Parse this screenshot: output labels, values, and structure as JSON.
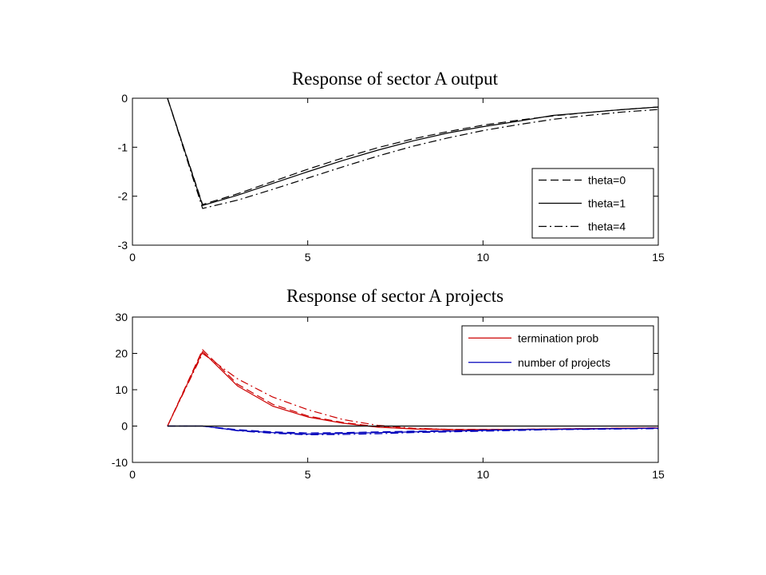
{
  "colors": {
    "background": "#ffffff",
    "axes": "#000000",
    "black_series": "#000000",
    "red_series": "#cc0000",
    "blue_series": "#0000bb"
  },
  "chart_data": [
    {
      "type": "line",
      "title": "Response of sector A output",
      "xlabel": "",
      "ylabel": "",
      "xlim": [
        0,
        15
      ],
      "ylim": [
        -3,
        0
      ],
      "xticks": [
        0,
        5,
        10,
        15
      ],
      "yticks": [
        -3,
        -2,
        -1,
        0
      ],
      "grid": false,
      "legend_position": "lower-right",
      "series": [
        {
          "name": "theta=0",
          "style": "dashed",
          "color": "#000000",
          "x": [
            1,
            2,
            3,
            4,
            5,
            6,
            7,
            8,
            9,
            10,
            11,
            12,
            13,
            14,
            15
          ],
          "y": [
            0,
            -2.17,
            -1.95,
            -1.7,
            -1.45,
            -1.22,
            -1.01,
            -0.83,
            -0.68,
            -0.55,
            -0.45,
            -0.36,
            -0.29,
            -0.23,
            -0.18
          ]
        },
        {
          "name": "theta=1",
          "style": "solid",
          "color": "#000000",
          "x": [
            1,
            2,
            3,
            4,
            5,
            6,
            7,
            8,
            9,
            10,
            11,
            12,
            13,
            14,
            15
          ],
          "y": [
            0,
            -2.19,
            -1.98,
            -1.74,
            -1.5,
            -1.27,
            -1.06,
            -0.87,
            -0.71,
            -0.58,
            -0.47,
            -0.35,
            -0.29,
            -0.23,
            -0.18
          ]
        },
        {
          "name": "theta=4",
          "style": "dashdot",
          "color": "#000000",
          "x": [
            1,
            2,
            3,
            4,
            5,
            6,
            7,
            8,
            9,
            10,
            11,
            12,
            13,
            14,
            15
          ],
          "y": [
            0,
            -2.25,
            -2.08,
            -1.86,
            -1.63,
            -1.4,
            -1.18,
            -0.98,
            -0.81,
            -0.66,
            -0.54,
            -0.43,
            -0.35,
            -0.28,
            -0.23
          ]
        }
      ]
    },
    {
      "type": "line",
      "title": "Response of sector A projects",
      "xlabel": "",
      "ylabel": "",
      "xlim": [
        0,
        15
      ],
      "ylim": [
        -10,
        30
      ],
      "xticks": [
        0,
        5,
        10,
        15
      ],
      "yticks": [
        -10,
        0,
        10,
        20,
        30
      ],
      "grid": false,
      "legend_position": "upper-right",
      "series": [
        {
          "name": "termination prob",
          "style": "solid",
          "color": "#cc0000",
          "x": [
            1,
            2,
            3,
            4,
            5,
            6,
            7,
            8,
            9,
            10,
            11,
            12,
            13,
            14,
            15
          ],
          "y": [
            0,
            20.5,
            11.0,
            5.5,
            2.5,
            0.8,
            -0.3,
            -0.8,
            -1.0,
            -1.0,
            -0.9,
            -0.8,
            -0.7,
            -0.6,
            -0.5
          ]
        },
        {
          "style": "dashed",
          "color": "#cc0000",
          "x": [
            1,
            2,
            3,
            4,
            5,
            6,
            7,
            8,
            9,
            10,
            11,
            12,
            13,
            14,
            15
          ],
          "y": [
            0,
            21.0,
            11.5,
            6.0,
            2.8,
            1.0,
            -0.2,
            -0.7,
            -0.9,
            -0.9,
            -0.9,
            -0.8,
            -0.7,
            -0.6,
            -0.5
          ]
        },
        {
          "style": "dashdot",
          "color": "#cc0000",
          "x": [
            1,
            2,
            3,
            4,
            5,
            6,
            7,
            8,
            9,
            10,
            11,
            12,
            13,
            14,
            15
          ],
          "y": [
            0,
            20.0,
            13.0,
            8.0,
            4.5,
            1.8,
            0.2,
            -0.6,
            -0.9,
            -1.0,
            -1.0,
            -0.9,
            -0.8,
            -0.6,
            -0.5
          ]
        },
        {
          "name": "number of projects",
          "style": "solid",
          "color": "#0000bb",
          "x": [
            1,
            2,
            3,
            4,
            5,
            6,
            7,
            8,
            9,
            10,
            11,
            12,
            13,
            14,
            15
          ],
          "y": [
            0,
            0,
            -1.2,
            -1.8,
            -2.2,
            -2.0,
            -1.8,
            -1.6,
            -1.4,
            -1.2,
            -1.0,
            -0.9,
            -0.8,
            -0.7,
            -0.6
          ]
        },
        {
          "style": "dashed",
          "color": "#0000bb",
          "x": [
            1,
            2,
            3,
            4,
            5,
            6,
            7,
            8,
            9,
            10,
            11,
            12,
            13,
            14,
            15
          ],
          "y": [
            0,
            0,
            -1.0,
            -1.6,
            -1.9,
            -1.8,
            -1.6,
            -1.4,
            -1.3,
            -1.1,
            -1.0,
            -0.9,
            -0.8,
            -0.7,
            -0.6
          ]
        },
        {
          "style": "dashdot",
          "color": "#0000bb",
          "x": [
            1,
            2,
            3,
            4,
            5,
            6,
            7,
            8,
            9,
            10,
            11,
            12,
            13,
            14,
            15
          ],
          "y": [
            0,
            0,
            -1.3,
            -2.0,
            -2.4,
            -2.3,
            -2.1,
            -1.8,
            -1.6,
            -1.4,
            -1.2,
            -1.0,
            -0.9,
            -0.8,
            -0.7
          ]
        },
        {
          "style": "solid",
          "color": "#000000",
          "x": [
            1,
            15
          ],
          "y": [
            0,
            0
          ]
        }
      ]
    }
  ]
}
